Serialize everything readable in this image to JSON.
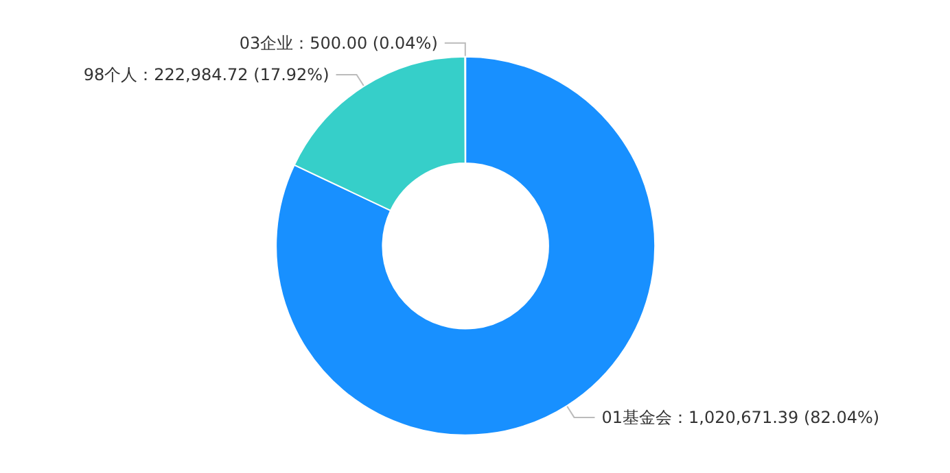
{
  "chart_data": {
    "type": "donut",
    "categories": [
      "01基金会",
      "98个人",
      "03企业"
    ],
    "values": [
      1020671.39,
      222984.72,
      500.0
    ],
    "colors": [
      "#1890ff",
      "#36cfc9",
      "#facc14"
    ],
    "value_labels": [
      "1,020,671.39 (82.04%)",
      "222,984.72 (17.92%)",
      "500.00 (0.04%)"
    ],
    "legend": false
  }
}
